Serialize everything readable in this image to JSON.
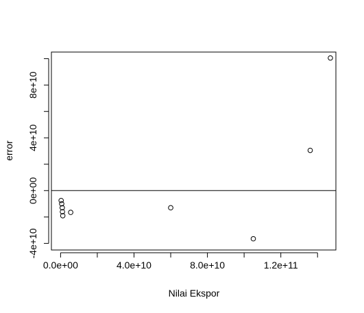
{
  "chart_data": {
    "type": "scatter",
    "title": "",
    "xlabel": "Nilai Ekspor",
    "ylabel": "error",
    "xlim": [
      -5000000000,
      150000000000
    ],
    "ylim": [
      -45000000000,
      105000000000
    ],
    "x_ticks": [
      0,
      20000000000,
      40000000000,
      60000000000,
      80000000000,
      100000000000,
      120000000000,
      140000000000
    ],
    "x_tick_labels": [
      {
        "value": 0,
        "label": "0.0e+00"
      },
      {
        "value": 40000000000,
        "label": "4.0e+10"
      },
      {
        "value": 80000000000,
        "label": "8.0e+10"
      },
      {
        "value": 120000000000,
        "label": "1.2e+11"
      }
    ],
    "y_ticks": [
      -40000000000,
      -20000000000,
      0,
      20000000000,
      40000000000,
      60000000000,
      80000000000,
      100000000000
    ],
    "y_tick_labels": [
      {
        "value": -40000000000,
        "label": "-4e+10"
      },
      {
        "value": 0,
        "label": "0e+00"
      },
      {
        "value": 40000000000,
        "label": "4e+10"
      },
      {
        "value": 80000000000,
        "label": "8e+10"
      }
    ],
    "reference_line": {
      "y": 0
    },
    "points": [
      {
        "x": 300000000,
        "y": -7500000000
      },
      {
        "x": 600000000,
        "y": -10000000000
      },
      {
        "x": 900000000,
        "y": -13000000000
      },
      {
        "x": 1000000000,
        "y": -16000000000
      },
      {
        "x": 1200000000,
        "y": -19000000000
      },
      {
        "x": 5500000000,
        "y": -16500000000
      },
      {
        "x": 60000000000,
        "y": -13000000000
      },
      {
        "x": 105000000000,
        "y": -36500000000
      },
      {
        "x": 136000000000,
        "y": 30500000000
      },
      {
        "x": 147000000000,
        "y": 100500000000
      }
    ],
    "grid": false,
    "legend": "none"
  }
}
